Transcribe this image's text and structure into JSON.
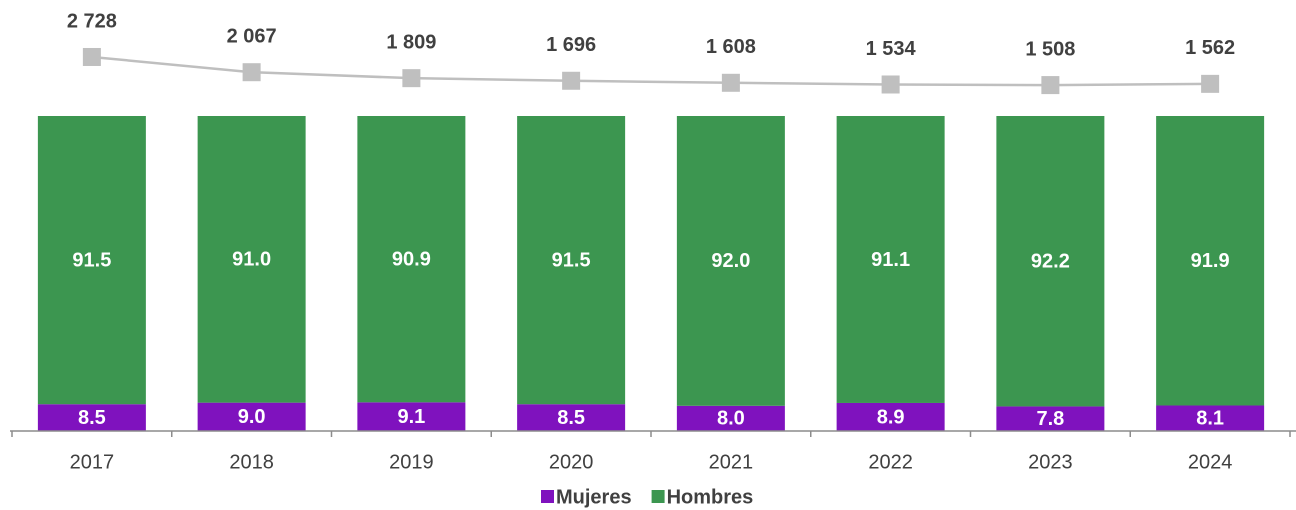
{
  "chart_data": {
    "type": "bar",
    "stacked": true,
    "categories": [
      "2017",
      "2018",
      "2019",
      "2020",
      "2021",
      "2022",
      "2023",
      "2024"
    ],
    "series": [
      {
        "name": "Mujeres",
        "color": "#7f12be",
        "values": [
          8.5,
          9.0,
          9.1,
          8.5,
          8.0,
          8.9,
          7.8,
          8.1
        ],
        "value_labels": [
          "8.5",
          "9.0",
          "9.1",
          "8.5",
          "8.0",
          "8.9",
          "7.8",
          "8.1"
        ]
      },
      {
        "name": "Hombres",
        "color": "#3c9650",
        "values": [
          91.5,
          91.0,
          90.9,
          91.5,
          92.0,
          91.1,
          92.2,
          91.9
        ],
        "value_labels": [
          "91.5",
          "91.0",
          "90.9",
          "91.5",
          "92.0",
          "91.1",
          "92.2",
          "91.9"
        ]
      }
    ],
    "totals": {
      "type": "line",
      "axis": "y2",
      "color": "#bfbfbf",
      "values": [
        2728,
        2067,
        1809,
        1696,
        1608,
        1534,
        1508,
        1562
      ],
      "value_labels": [
        "2 728",
        "2 067",
        "1 809",
        "1 696",
        "1 608",
        "1 534",
        "1 508",
        "1 562"
      ]
    },
    "ylim": [
      0,
      100
    ],
    "y2lim": [
      -13500,
      5200
    ],
    "legend": "bottom"
  }
}
